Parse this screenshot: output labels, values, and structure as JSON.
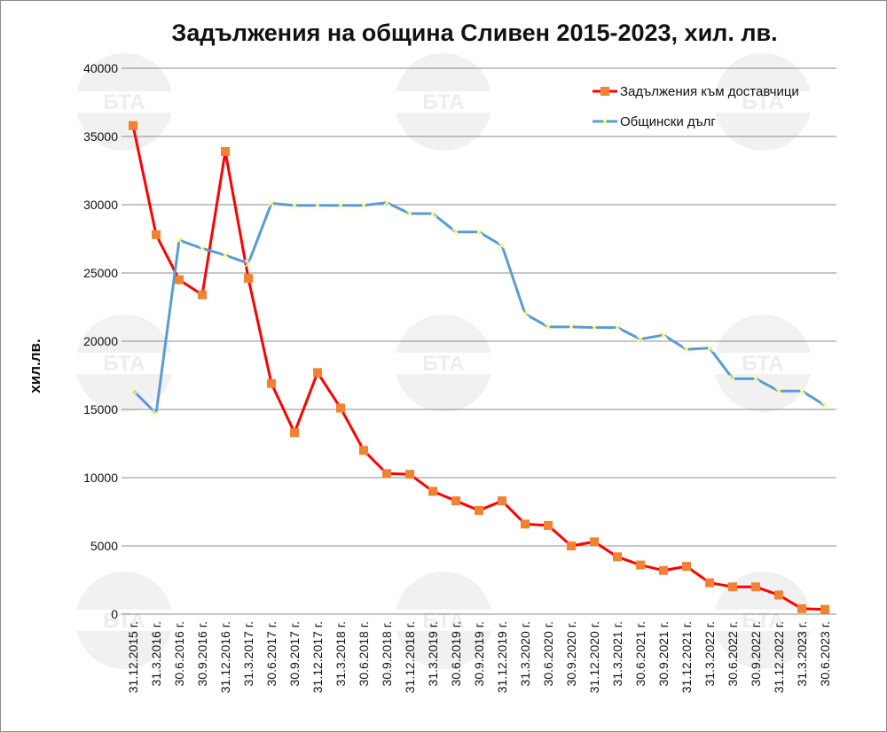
{
  "chart_data": {
    "type": "line",
    "title": "Задължения на община Сливен 2015-2023, хил. лв.",
    "ylabel": "хил.лв.",
    "xlabel": "",
    "ylim": [
      0,
      40000
    ],
    "yticks": [
      0,
      5000,
      10000,
      15000,
      20000,
      25000,
      30000,
      35000,
      40000
    ],
    "grid": true,
    "legend_position": "top-right",
    "watermark": "БТА",
    "categories": [
      "31.12.2015 г.",
      "31.3.2016 г.",
      "30.6.2016 г.",
      "30.9.2016 г.",
      "31.12.2016 г.",
      "31.3.2017 г.",
      "30.6.2017 г.",
      "30.9.2017 г.",
      "31.12.2017 г.",
      "31.3.2018 г.",
      "30.6.2018 г.",
      "30.9.2018 г.",
      "31.12.2018 г.",
      "31.3.2019 г.",
      "30.6.2019 г.",
      "30.9.2019 г.",
      "31.12.2019 г.",
      "31.3.2020 г.",
      "30.6.2020 г.",
      "30.9.2020 г.",
      "31.12.2020 г.",
      "31.3.2021 г.",
      "30.6.2021 г.",
      "30.9.2021 г.",
      "31.12.2021 г.",
      "31.3.2022 г.",
      "30.6.2022 г.",
      "30.9.2022 г.",
      "31.12.2022 г.",
      "31.3.2023 г.",
      "30.6.2023 г."
    ],
    "series": [
      {
        "name": "Задължения към доставчици",
        "color": "#ff0000",
        "marker": "square",
        "marker_color": "#f08232",
        "values": [
          35800,
          27800,
          24500,
          23400,
          33900,
          24600,
          16900,
          13300,
          17700,
          15100,
          12000,
          10300,
          10250,
          9000,
          8300,
          7600,
          8300,
          6600,
          6500,
          5000,
          5300,
          4200,
          3600,
          3200,
          3500,
          2300,
          2000,
          2000,
          1400,
          400,
          350
        ]
      },
      {
        "name": "Общински дълг",
        "color": "#5b9bd5",
        "marker": "x",
        "marker_color": "#ffff99",
        "values": [
          16400,
          14700,
          27400,
          26800,
          26300,
          25700,
          30100,
          29950,
          29950,
          29950,
          29950,
          30150,
          29350,
          29350,
          28000,
          28000,
          27000,
          22000,
          21050,
          21050,
          21000,
          21000,
          20150,
          20450,
          19400,
          19500,
          17250,
          17250,
          16350,
          16350,
          15300
        ]
      }
    ]
  }
}
